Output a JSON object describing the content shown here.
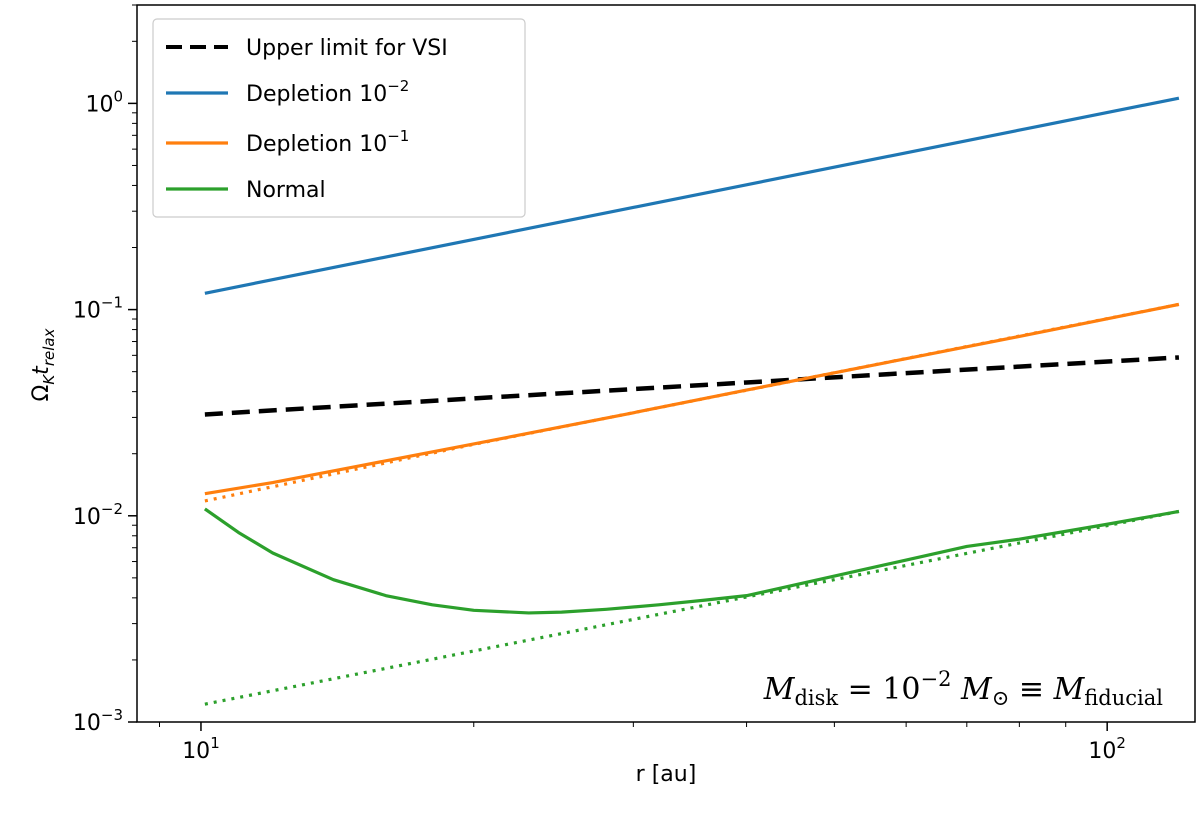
{
  "chart_data": {
    "type": "line",
    "xscale": "log",
    "yscale": "log",
    "xlim": [
      8.5,
      125
    ],
    "ylim": [
      0.001,
      3.0
    ],
    "xlabel": "r [au]",
    "ylabel": {
      "base": "Ω",
      "base_sub": "K",
      "var": "t",
      "var_sub": "relax"
    },
    "x_ticks": [
      {
        "value": 10,
        "base": "10",
        "exp": "1"
      },
      {
        "value": 100,
        "base": "10",
        "exp": "2"
      }
    ],
    "y_ticks": [
      {
        "value": 1,
        "base": "10",
        "exp": "0"
      },
      {
        "value": 0.1,
        "base": "10",
        "exp": "−1"
      },
      {
        "value": 0.01,
        "base": "10",
        "exp": "−2"
      },
      {
        "value": 0.001,
        "base": "10",
        "exp": "−3"
      }
    ],
    "series": [
      {
        "name": "Upper limit for VSI",
        "legend_base": "Upper limit for VSI",
        "legend_exp": "",
        "color": "#000000",
        "style": "dashed",
        "x": [
          10.1,
          20,
          40,
          60,
          80,
          120
        ],
        "y": [
          0.031,
          0.0371,
          0.0443,
          0.0492,
          0.0529,
          0.0586
        ]
      },
      {
        "name": "Depletion 10^-2",
        "legend_base": "Depletion 10",
        "legend_exp": "−2",
        "color": "#1f77b4",
        "style": "solid",
        "x": [
          10.1,
          120
        ],
        "y": [
          0.12,
          1.06
        ]
      },
      {
        "name": "Depletion 10^-1",
        "legend_base": "Depletion 10",
        "legend_exp": "−1",
        "color": "#ff7f0e",
        "style": "solid",
        "x": [
          10.1,
          12,
          15,
          20,
          30,
          40,
          60,
          80,
          120
        ],
        "y": [
          0.0128,
          0.0145,
          0.0175,
          0.0223,
          0.0316,
          0.0407,
          0.0578,
          0.0741,
          0.106
        ]
      },
      {
        "name": "Normal",
        "legend_base": "Normal",
        "legend_exp": "",
        "color": "#2ca02c",
        "style": "solid",
        "x": [
          10.1,
          11,
          12,
          14,
          16,
          18,
          20,
          23,
          25,
          28,
          32,
          36,
          40,
          50,
          60,
          70,
          80,
          100,
          120
        ],
        "y": [
          0.0108,
          0.0083,
          0.0066,
          0.0049,
          0.0041,
          0.0037,
          0.00348,
          0.00338,
          0.00341,
          0.00352,
          0.0037,
          0.0039,
          0.0041,
          0.0051,
          0.0061,
          0.0071,
          0.0077,
          0.0091,
          0.0105
        ]
      }
    ],
    "reference_lines": [
      {
        "color": "#ff7f0e",
        "style": "dotted",
        "x": [
          10.1,
          20,
          120
        ],
        "y": [
          0.0118,
          0.0222,
          0.106
        ]
      },
      {
        "color": "#2ca02c",
        "style": "dotted",
        "x": [
          10.1,
          120
        ],
        "y": [
          0.00122,
          0.0105
        ]
      }
    ],
    "legend_position": "top-left",
    "annotation": {
      "position": "bottom-right",
      "lhs": "M",
      "lhs_sub": "disk",
      "eq": " = 10",
      "exp": "−2",
      "unit": "M",
      "unit_sub": "⊙",
      "equiv": " ≡ ",
      "rhs": "M",
      "rhs_sub": "fiducial"
    }
  }
}
